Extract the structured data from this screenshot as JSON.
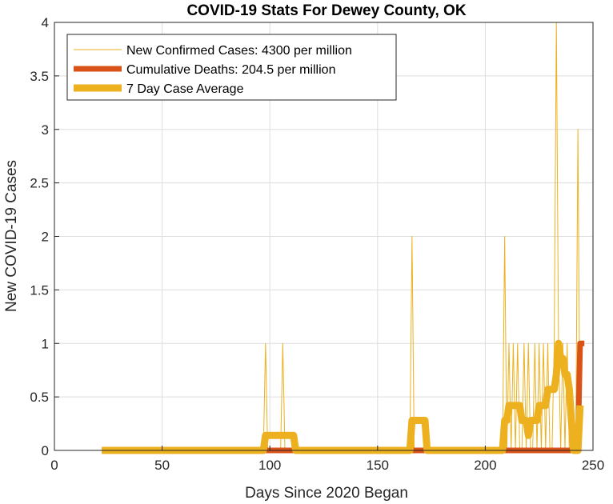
{
  "chart_data": {
    "type": "line",
    "title": "COVID-19 Stats For Dewey County, OK",
    "xlabel": "Days Since 2020 Began",
    "ylabel": "New COVID-19 Cases",
    "xlim": [
      0,
      250
    ],
    "ylim": [
      0,
      4
    ],
    "xticks": [
      0,
      50,
      100,
      150,
      200,
      250
    ],
    "yticks": [
      0,
      0.5,
      1,
      1.5,
      2,
      2.5,
      3,
      3.5,
      4
    ],
    "xtick_labels": [
      "0",
      "50",
      "100",
      "150",
      "200",
      "250"
    ],
    "ytick_labels": [
      "0",
      "0.5",
      "1",
      "1.5",
      "2",
      "2.5",
      "3",
      "3.5",
      "4"
    ],
    "grid": true,
    "legend_position": "top-left",
    "series": [
      {
        "name": "New Confirmed Cases: 4300 per million",
        "color": "#EDB120",
        "width": 1,
        "x": [
          22,
          97,
          98,
          99,
          105,
          106,
          107,
          165,
          166,
          167,
          208,
          209,
          210,
          211,
          212,
          213,
          214,
          215,
          216,
          217,
          218,
          219,
          220,
          221,
          222,
          223,
          224,
          225,
          226,
          227,
          228,
          229,
          230,
          231,
          232,
          233,
          234,
          235,
          236,
          237,
          238,
          239,
          240,
          241,
          242,
          243,
          244
        ],
        "y": [
          0,
          0,
          1,
          0,
          0,
          1,
          0,
          0,
          2,
          0,
          0,
          2,
          0,
          1,
          0,
          1,
          0,
          1,
          0,
          0,
          1,
          0,
          1,
          0,
          0,
          1,
          0,
          1,
          0,
          1,
          0,
          1,
          0,
          0,
          1,
          4,
          1,
          0,
          1,
          0,
          1,
          0,
          0,
          0,
          0,
          3,
          0
        ]
      },
      {
        "name": "Cumulative Deaths: 204.5 per million",
        "color": "#D95319",
        "width": 7,
        "x": [
          22,
          243,
          244,
          245,
          246
        ],
        "y": [
          0,
          0,
          1,
          1,
          1
        ]
      },
      {
        "name": "7 Day Case Average",
        "color": "#EDB120",
        "width": 9,
        "x": [
          22,
          97,
          98,
          104,
          105,
          110,
          111,
          112,
          113,
          165,
          166,
          172,
          173,
          208,
          209,
          210,
          211,
          212,
          213,
          214,
          215,
          216,
          217,
          218,
          219,
          220,
          221,
          222,
          223,
          224,
          225,
          226,
          227,
          228,
          229,
          230,
          231,
          232,
          233,
          234,
          235,
          236,
          237,
          238,
          239,
          240,
          241,
          242,
          243,
          244
        ],
        "y": [
          0,
          0,
          0.14,
          0.14,
          0.14,
          0.14,
          0.14,
          0,
          0,
          0,
          0.28,
          0.28,
          0,
          0,
          0.28,
          0.28,
          0.42,
          0.42,
          0.42,
          0.42,
          0.42,
          0.42,
          0.28,
          0.28,
          0.28,
          0.14,
          0.28,
          0.28,
          0.28,
          0.28,
          0.42,
          0.42,
          0.42,
          0.42,
          0.57,
          0.57,
          0.57,
          0.57,
          0.71,
          1,
          0.86,
          0.86,
          0.71,
          0.71,
          0.57,
          0.28,
          0,
          0,
          0,
          0.42
        ]
      }
    ]
  }
}
